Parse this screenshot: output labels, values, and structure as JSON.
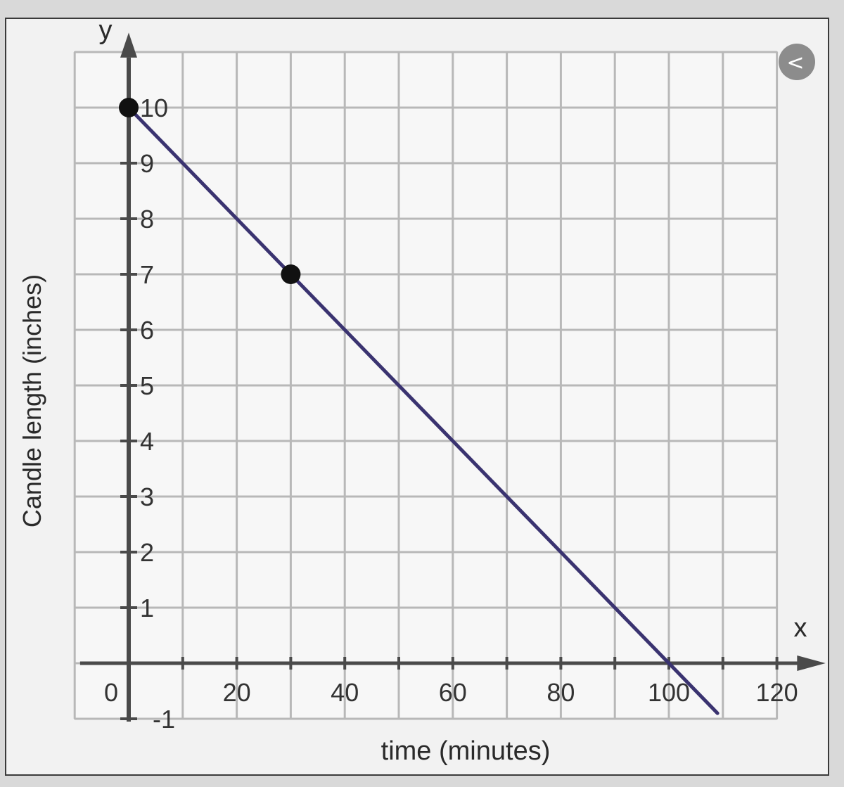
{
  "chart_data": {
    "type": "line",
    "title": "",
    "xlabel": "time (minutes)",
    "ylabel": "Candle length (inches)",
    "x_axis_letter": "x",
    "y_axis_letter": "y",
    "xlim": [
      -5,
      125
    ],
    "ylim": [
      -1,
      11.2
    ],
    "x_ticks": [
      {
        "value": 0,
        "label": "0"
      },
      {
        "value": 20,
        "label": "20"
      },
      {
        "value": 40,
        "label": "40"
      },
      {
        "value": 60,
        "label": "60"
      },
      {
        "value": 80,
        "label": "80"
      },
      {
        "value": 100,
        "label": "100"
      },
      {
        "value": 120,
        "label": "120"
      }
    ],
    "y_ticks": [
      {
        "value": 10,
        "label": "10"
      },
      {
        "value": 9,
        "label": "9"
      },
      {
        "value": 8,
        "label": "8"
      },
      {
        "value": 7,
        "label": "7"
      },
      {
        "value": 6,
        "label": "6"
      },
      {
        "value": 5,
        "label": "5"
      },
      {
        "value": 4,
        "label": "4"
      },
      {
        "value": 3,
        "label": "3"
      },
      {
        "value": 2,
        "label": "2"
      },
      {
        "value": 1,
        "label": "1"
      },
      {
        "value": -1,
        "label": "-1"
      }
    ],
    "grid": true,
    "grid_step_x": 10,
    "grid_step_y": 1,
    "series": [
      {
        "line": [
          [
            0,
            10
          ],
          [
            109,
            -0.9
          ]
        ],
        "points": [
          [
            0,
            10
          ],
          [
            30,
            7
          ]
        ],
        "color": "#3a3370"
      }
    ]
  },
  "ui": {
    "back_button_glyph": "<",
    "back_button_color": "#8c8c8c"
  }
}
